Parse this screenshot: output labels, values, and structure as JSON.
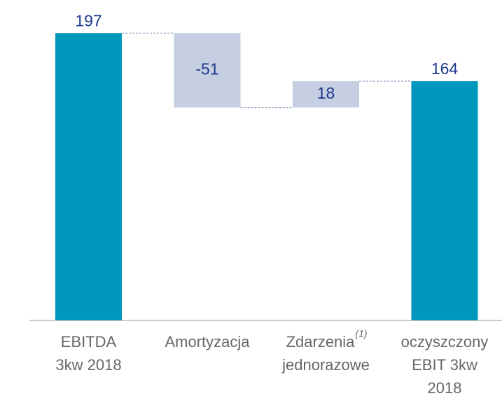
{
  "chart_data": {
    "type": "waterfall",
    "categories": [
      [
        "EBITDA",
        "3kw 2018"
      ],
      [
        "Amortyzacja"
      ],
      [
        "Zdarzenia",
        "jednorazowe"
      ],
      [
        "oczyszczony",
        "EBIT 3kw",
        "2018"
      ]
    ],
    "footnote_marks": [
      null,
      null,
      "(1)",
      null
    ],
    "values": [
      197,
      -51,
      18,
      164
    ],
    "measure": [
      "absolute",
      "relative",
      "relative",
      "total"
    ],
    "total_color": "#0097bd",
    "delta_color": "#c5cfe1",
    "ylim": [
      0,
      200
    ]
  }
}
